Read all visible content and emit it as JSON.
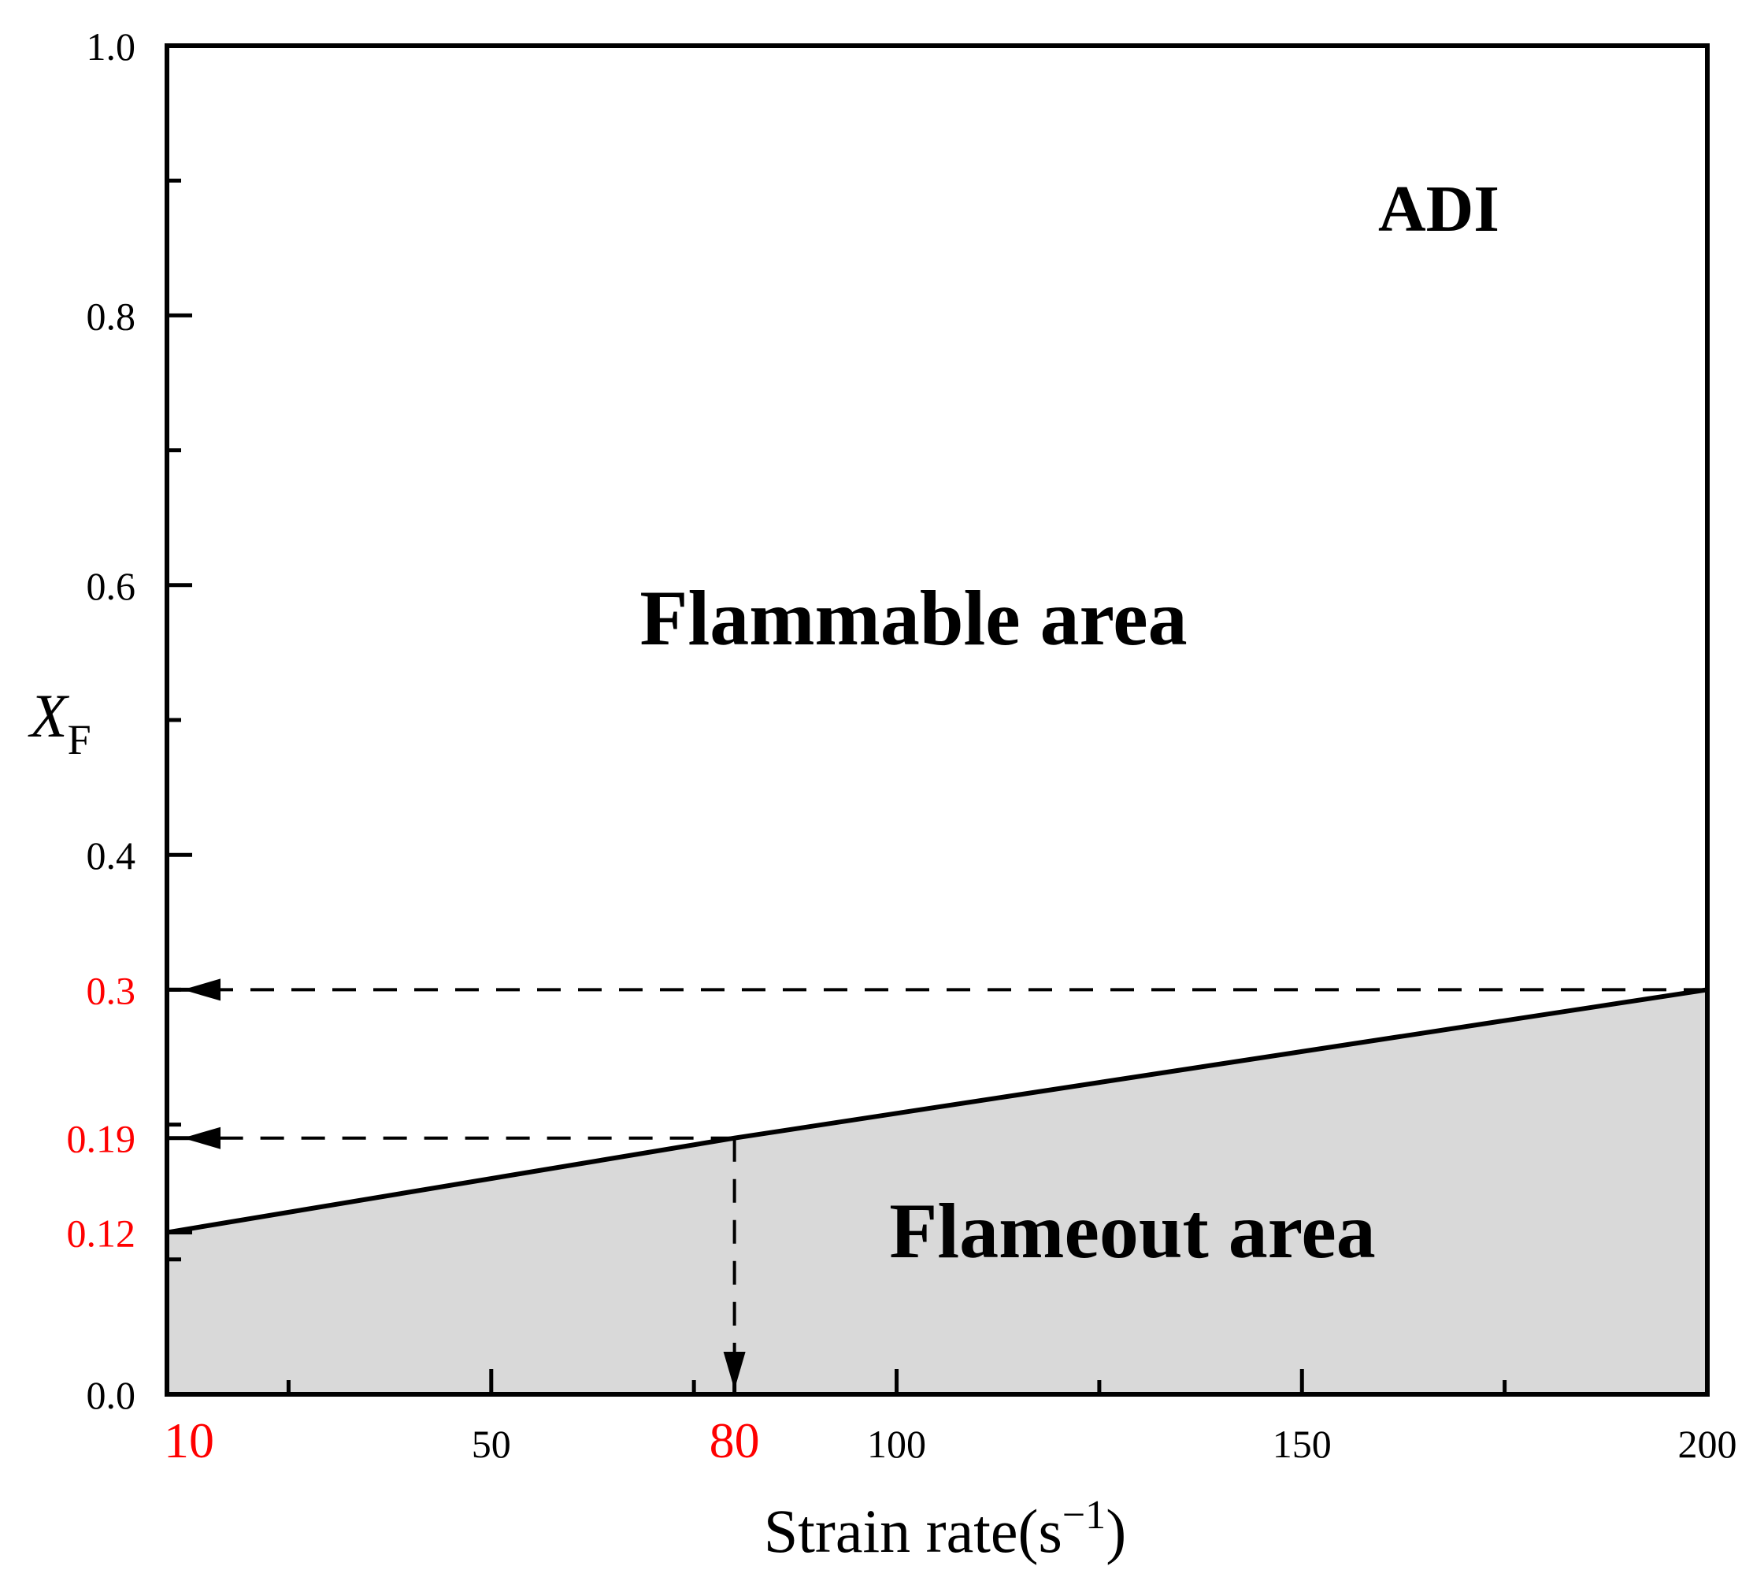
{
  "chart_data": {
    "type": "area",
    "xlabel": "Strain rate(s",
    "xlabel_sup": "−1",
    "xlabel_close": ")",
    "ylabel": "X",
    "ylabel_sub": "F",
    "xlim": [
      10,
      200
    ],
    "ylim": [
      0.0,
      1.0
    ],
    "grid": false,
    "x_ticks": [
      {
        "value": 10,
        "label": "10",
        "highlight": true
      },
      {
        "value": 50,
        "label": "50",
        "highlight": false
      },
      {
        "value": 80,
        "label": "80",
        "highlight": true
      },
      {
        "value": 100,
        "label": "100",
        "highlight": false
      },
      {
        "value": 150,
        "label": "150",
        "highlight": false
      },
      {
        "value": 200,
        "label": "200",
        "highlight": false
      }
    ],
    "x_minor_ticks": [
      25,
      75,
      125,
      175
    ],
    "y_ticks": [
      {
        "value": 0.0,
        "label": "0.0",
        "highlight": false
      },
      {
        "value": 0.12,
        "label": "0.12",
        "highlight": true
      },
      {
        "value": 0.19,
        "label": "0.19",
        "highlight": true
      },
      {
        "value": 0.3,
        "label": "0.3",
        "highlight": true
      },
      {
        "value": 0.4,
        "label": "0.4",
        "highlight": false
      },
      {
        "value": 0.6,
        "label": "0.6",
        "highlight": false
      },
      {
        "value": 0.8,
        "label": "0.8",
        "highlight": false
      },
      {
        "value": 1.0,
        "label": "1.0",
        "highlight": false
      }
    ],
    "y_minor_ticks": [
      0.1,
      0.2,
      0.3,
      0.5,
      0.7,
      0.9
    ],
    "series": [
      {
        "x": [
          10,
          80,
          200
        ],
        "y": [
          0.12,
          0.19,
          0.3
        ]
      }
    ],
    "fill_color": "#d9d9d9",
    "highlight_color": "#ff0000",
    "annotations": {
      "corner": "ADI",
      "upper_region": "Flammable area",
      "lower_region": "Flameout area"
    },
    "guides": [
      {
        "from": [
          200,
          0.3
        ],
        "to": [
          10,
          0.3
        ]
      },
      {
        "from": [
          80,
          0.19
        ],
        "to": [
          10,
          0.19
        ]
      },
      {
        "from": [
          80,
          0.19
        ],
        "to": [
          80,
          0.0
        ]
      }
    ]
  }
}
